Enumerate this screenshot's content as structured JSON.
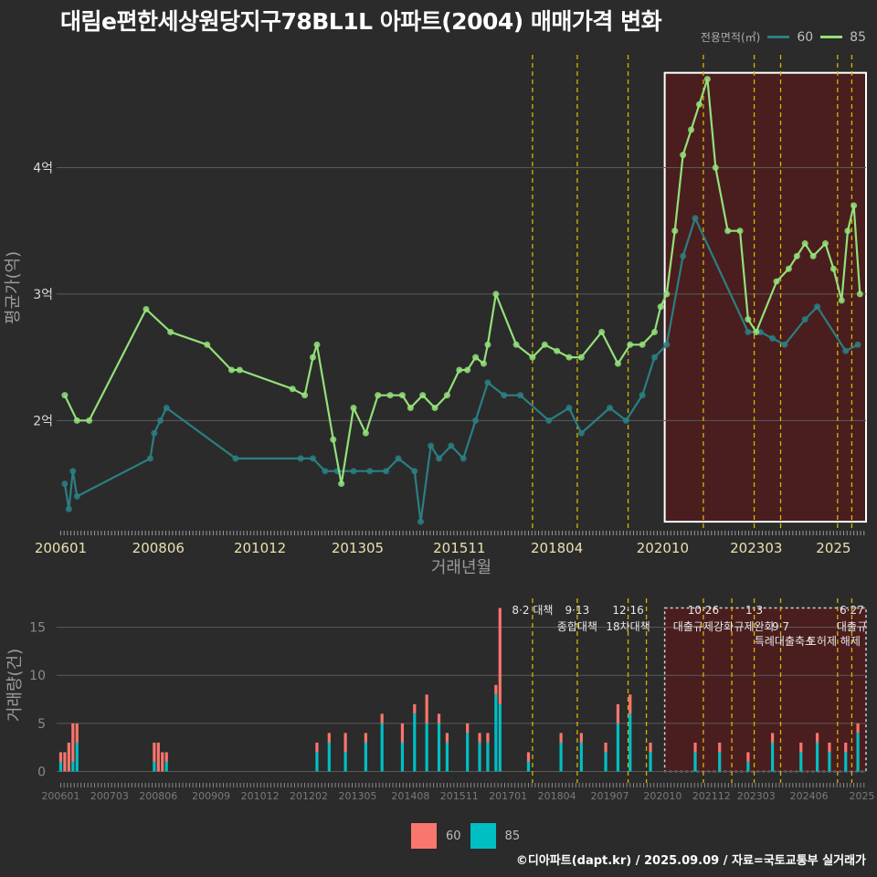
{
  "title": "대림e편한세상원당지구78BL1L 아파트(2004) 매매가격 변화",
  "footer": "©디아파트(dapt.kr) / 2025.09.09 / 자료=국토교통부 실거래가",
  "colors": {
    "s60": "#2a7f82",
    "s85": "#93e07a",
    "bar60": "#f8766d",
    "bar85": "#00bfc4",
    "vline": "#d8b400",
    "highlight": "#4a1e1e"
  },
  "legend_top": {
    "title": "전용면적(㎡)",
    "items": [
      "60",
      "85"
    ]
  },
  "legend_bottom": {
    "items": [
      "60",
      "85"
    ]
  },
  "chart_data": [
    {
      "type": "line",
      "title": "대림e편한세상원당지구78BL1L 아파트(2004) 매매가격 변화",
      "xlabel": "거래년월",
      "ylabel": "평균가(억)",
      "ylim": [
        1.15,
        4.95
      ],
      "xlim": [
        2005.9,
        2025.8
      ],
      "y_ticks": [
        {
          "v": 2,
          "label": "2억"
        },
        {
          "v": 3,
          "label": "3억"
        },
        {
          "v": 4,
          "label": "4억"
        }
      ],
      "x_ticks": [
        {
          "v": 2006.0,
          "label": "200601"
        },
        {
          "v": 2008.4,
          "label": "200806"
        },
        {
          "v": 2010.9,
          "label": "201012"
        },
        {
          "v": 2013.3,
          "label": "201305"
        },
        {
          "v": 2015.8,
          "label": "201511"
        },
        {
          "v": 2018.2,
          "label": "201804"
        },
        {
          "v": 2020.8,
          "label": "202010"
        },
        {
          "v": 2023.1,
          "label": "202303"
        },
        {
          "v": 2025.0,
          "label": "2025"
        }
      ],
      "vlines": [
        2017.6,
        2018.7,
        2019.95,
        2021.8,
        2023.05,
        2023.7,
        2025.1,
        2025.45
      ],
      "highlight": [
        2020.85,
        2025.85
      ],
      "series": [
        {
          "name": "60",
          "x": [
            2006.1,
            2006.2,
            2006.3,
            2006.4,
            2008.2,
            2008.3,
            2008.45,
            2008.6,
            2010.3,
            2011.9,
            2012.2,
            2012.5,
            2012.8,
            2013.2,
            2013.6,
            2014.0,
            2014.3,
            2014.7,
            2014.85,
            2015.1,
            2015.3,
            2015.6,
            2015.9,
            2016.2,
            2016.5,
            2016.9,
            2017.3,
            2018.0,
            2018.5,
            2018.8,
            2019.5,
            2019.9,
            2020.3,
            2020.6,
            2020.9,
            2021.3,
            2021.6,
            2022.9,
            2023.2,
            2023.5,
            2023.8,
            2024.3,
            2024.6,
            2025.3,
            2025.6
          ],
          "y": [
            1.5,
            1.3,
            1.6,
            1.4,
            1.7,
            1.9,
            2.0,
            2.1,
            1.7,
            1.7,
            1.7,
            1.6,
            1.6,
            1.6,
            1.6,
            1.6,
            1.7,
            1.6,
            1.2,
            1.8,
            1.7,
            1.8,
            1.7,
            2.0,
            2.3,
            2.2,
            2.2,
            2.0,
            2.1,
            1.9,
            2.1,
            2.0,
            2.2,
            2.5,
            2.6,
            3.3,
            3.6,
            2.7,
            2.7,
            2.65,
            2.6,
            2.8,
            2.9,
            2.55,
            2.6
          ]
        },
        {
          "name": "85",
          "x": [
            2006.1,
            2006.4,
            2006.7,
            2008.1,
            2008.7,
            2009.6,
            2010.2,
            2010.4,
            2011.7,
            2012.0,
            2012.2,
            2012.3,
            2012.7,
            2012.9,
            2013.2,
            2013.5,
            2013.8,
            2014.1,
            2014.4,
            2014.6,
            2014.9,
            2015.2,
            2015.5,
            2015.8,
            2016.0,
            2016.2,
            2016.4,
            2016.5,
            2016.7,
            2017.2,
            2017.6,
            2017.9,
            2018.2,
            2018.5,
            2018.8,
            2019.3,
            2019.7,
            2020.0,
            2020.3,
            2020.6,
            2020.75,
            2020.9,
            2021.1,
            2021.3,
            2021.5,
            2021.7,
            2021.9,
            2022.1,
            2022.4,
            2022.7,
            2022.9,
            2023.1,
            2023.6,
            2023.9,
            2024.1,
            2024.3,
            2024.5,
            2024.8,
            2025.0,
            2025.2,
            2025.35,
            2025.5,
            2025.65
          ],
          "y": [
            2.2,
            2.0,
            2.0,
            2.88,
            2.7,
            2.6,
            2.4,
            2.4,
            2.25,
            2.2,
            2.5,
            2.6,
            1.85,
            1.5,
            2.1,
            1.9,
            2.2,
            2.2,
            2.2,
            2.1,
            2.2,
            2.1,
            2.2,
            2.4,
            2.4,
            2.5,
            2.45,
            2.6,
            3.0,
            2.6,
            2.5,
            2.6,
            2.55,
            2.5,
            2.5,
            2.7,
            2.45,
            2.6,
            2.6,
            2.7,
            2.9,
            3.0,
            3.5,
            4.1,
            4.3,
            4.5,
            4.7,
            4.0,
            3.5,
            3.5,
            2.8,
            2.7,
            3.1,
            3.2,
            3.3,
            3.4,
            3.3,
            3.4,
            3.2,
            2.95,
            3.5,
            3.7,
            3.0
          ]
        }
      ]
    },
    {
      "type": "bar",
      "ylabel": "거래량(건)",
      "ylim": [
        -1,
        18
      ],
      "xlim": [
        2005.9,
        2025.8
      ],
      "y_ticks": [
        {
          "v": 0,
          "label": "0"
        },
        {
          "v": 5,
          "label": "5"
        },
        {
          "v": 10,
          "label": "10"
        },
        {
          "v": 15,
          "label": "15"
        }
      ],
      "x_ticks": [
        {
          "v": 2006.0,
          "label": "200601"
        },
        {
          "v": 2007.2,
          "label": "200703"
        },
        {
          "v": 2008.4,
          "label": "200806"
        },
        {
          "v": 2009.7,
          "label": "200909"
        },
        {
          "v": 2010.9,
          "label": "201012"
        },
        {
          "v": 2012.1,
          "label": "201202"
        },
        {
          "v": 2013.3,
          "label": "201305"
        },
        {
          "v": 2014.6,
          "label": "201408"
        },
        {
          "v": 2015.8,
          "label": "201511"
        },
        {
          "v": 2017.0,
          "label": "201701"
        },
        {
          "v": 2018.2,
          "label": "201804"
        },
        {
          "v": 2019.5,
          "label": "201907"
        },
        {
          "v": 2020.8,
          "label": "202010"
        },
        {
          "v": 2022.0,
          "label": "202112"
        },
        {
          "v": 2023.1,
          "label": "202303"
        },
        {
          "v": 2024.4,
          "label": "202406"
        },
        {
          "v": 2025.7,
          "label": "2025"
        }
      ],
      "vlines": [
        2017.6,
        2018.7,
        2019.95,
        2020.4,
        2021.8,
        2022.5,
        2023.05,
        2023.7,
        2025.1,
        2025.45
      ],
      "highlight": [
        2020.85,
        2025.85
      ],
      "annotations": [
        {
          "x": 2017.6,
          "line1": "8·2 대책",
          "line2": ""
        },
        {
          "x": 2018.7,
          "line1": "9·13",
          "line2": "종합대책"
        },
        {
          "x": 2019.95,
          "line1": "12·16",
          "line2": "18차대책"
        },
        {
          "x": 2021.8,
          "line1": "10·26",
          "line2": "대출규제강화"
        },
        {
          "x": 2023.05,
          "line1": "1·3",
          "line2": "규제완화"
        },
        {
          "x": 2023.7,
          "line1": "",
          "line2": "9·7"
        },
        {
          "x": 2023.8,
          "line1": "",
          "line2": "특례대출축소"
        },
        {
          "x": 2025.0,
          "line1": "",
          "line2": "토허제 해제"
        },
        {
          "x": 2025.45,
          "line1": "6·27",
          "line2": "대출규"
        }
      ],
      "series": [
        {
          "name": "60",
          "x": [
            2006.0,
            2006.1,
            2006.2,
            2006.3,
            2006.4,
            2008.3,
            2008.4,
            2008.5,
            2008.6,
            2012.3,
            2012.6,
            2013.0,
            2013.5,
            2013.9,
            2014.4,
            2014.7,
            2015.0,
            2015.3,
            2015.5,
            2016.0,
            2016.3,
            2016.5,
            2016.7,
            2016.8,
            2017.5,
            2018.3,
            2018.8,
            2019.4,
            2019.7,
            2020.0,
            2020.5,
            2021.6,
            2022.2,
            2022.9,
            2023.5,
            2024.2,
            2024.6,
            2024.9,
            2025.3,
            2025.6
          ],
          "values": [
            1,
            2,
            3,
            4,
            2,
            2,
            3,
            2,
            1,
            1,
            1,
            2,
            1,
            1,
            2,
            1,
            3,
            1,
            1,
            1,
            1,
            1,
            1,
            10,
            1,
            1,
            1,
            1,
            2,
            2,
            1,
            1,
            1,
            1,
            1,
            1,
            1,
            1,
            1,
            1
          ]
        },
        {
          "name": "85",
          "x": [
            2006.0,
            2006.1,
            2006.2,
            2006.3,
            2006.4,
            2008.3,
            2008.4,
            2008.5,
            2008.6,
            2012.3,
            2012.6,
            2013.0,
            2013.5,
            2013.9,
            2014.4,
            2014.7,
            2015.0,
            2015.3,
            2015.5,
            2016.0,
            2016.3,
            2016.5,
            2016.7,
            2016.8,
            2017.5,
            2018.3,
            2018.8,
            2019.4,
            2019.7,
            2020.0,
            2020.5,
            2021.6,
            2022.2,
            2022.9,
            2023.5,
            2024.2,
            2024.6,
            2024.9,
            2025.3,
            2025.6
          ],
          "values": [
            1,
            0,
            0,
            1,
            3,
            1,
            0,
            0,
            1,
            2,
            3,
            2,
            3,
            5,
            3,
            6,
            5,
            5,
            3,
            4,
            3,
            3,
            8,
            7,
            1,
            3,
            3,
            2,
            5,
            6,
            2,
            2,
            2,
            1,
            3,
            2,
            3,
            2,
            2,
            4
          ]
        }
      ]
    }
  ]
}
